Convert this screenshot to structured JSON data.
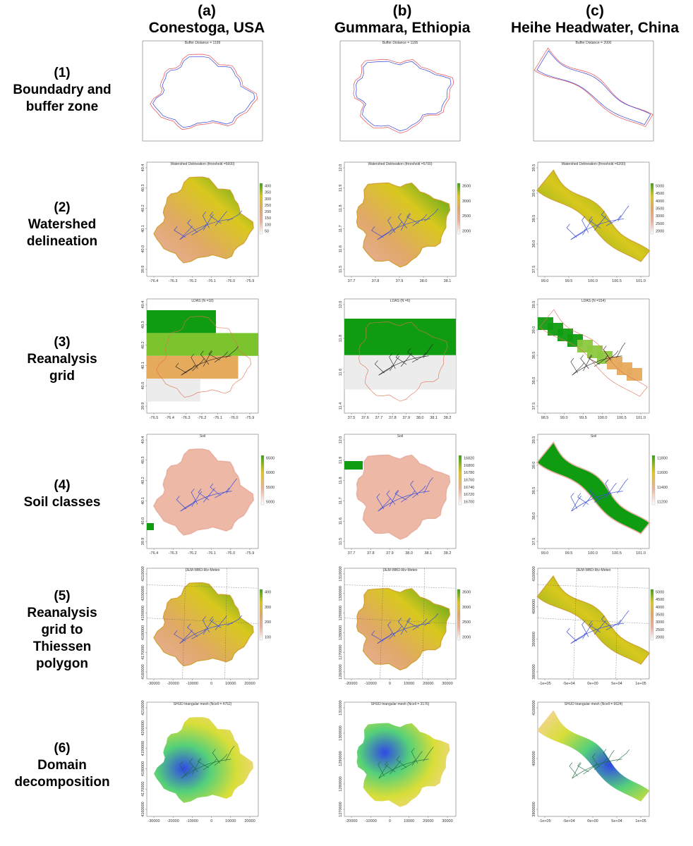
{
  "columns": [
    {
      "letter": "(a)",
      "name": "Conestoga, USA"
    },
    {
      "letter": "(b)",
      "name": "Gummara, Ethiopia"
    },
    {
      "letter": "(c)",
      "name": "Heihe Headwater, China"
    }
  ],
  "rows": [
    {
      "number": "(1)",
      "lines": [
        "Boundadry and",
        "buffer zone"
      ]
    },
    {
      "number": "(2)",
      "lines": [
        "Watershed",
        "delineation"
      ]
    },
    {
      "number": "(3)",
      "lines": [
        "Reanalysis",
        "grid"
      ]
    },
    {
      "number": "(4)",
      "lines": [
        "Soil classes"
      ]
    },
    {
      "number": "(5)",
      "lines": [
        "Reanalysis",
        "grid to",
        "Thiessen",
        "polygon"
      ]
    },
    {
      "number": "(6)",
      "lines": [
        "Domain",
        "decomposition"
      ]
    }
  ],
  "panel_titles": {
    "r1": [
      "Buffer Distance = 1199",
      "Buffer Distance = 1195",
      "Buffer Distance = 2000"
    ],
    "r2": [
      "Watershed Delineation (threshold =5600)",
      "Watershed Delineation (threshold =5700)",
      "Watershed Delineation (threshold =6200)"
    ],
    "r3": [
      "LDAS (N =18)",
      "LDAS (N =6)",
      "LDAS (N =154)"
    ],
    "r4": [
      "Soil",
      "Soil",
      "Soil"
    ],
    "r5": [
      "DEM-WBD-Riv-Meteo",
      "DEM-WBD-Riv-Meteo",
      "DEM-WBD-Riv-Meteo"
    ],
    "r6": [
      "SHUD triangular mesh (Ncell = 4752)",
      "SHUD triangular mesh (Ncell = 3176)",
      "SHUD triangular mesh (Ncell = 6624)"
    ]
  },
  "axes": {
    "a_lon": [
      "-76.4",
      "-76.3",
      "-76.2",
      "-76.1",
      "-76.0",
      "-75.9"
    ],
    "a_lon3": [
      "-76.5",
      "-76.4",
      "-76.3",
      "-76.2",
      "-76.1",
      "-76.0",
      "-75.9"
    ],
    "a_lat": [
      "40.4",
      "40.3",
      "40.2",
      "40.1",
      "40.0",
      "39.9"
    ],
    "a_x": [
      "-30000",
      "-20000",
      "-10000",
      "0",
      "10000",
      "20000"
    ],
    "a_y5": [
      "4210000",
      "4200000",
      "4190000",
      "4180000",
      "4170000",
      "4160000"
    ],
    "a_y6": [
      "4210000",
      "4200000",
      "4190000",
      "4180000",
      "4170000",
      "4160000"
    ],
    "b_lon": [
      "37.7",
      "37.8",
      "37.9",
      "38.0",
      "38.1"
    ],
    "b_lon3": [
      "37.5",
      "37.6",
      "37.7",
      "37.8",
      "37.9",
      "38.0",
      "38.1",
      "38.2"
    ],
    "b_lon4": [
      "37.7",
      "37.8",
      "37.9",
      "38.0",
      "38.1",
      "38.2"
    ],
    "b_lat": [
      "12.0",
      "11.9",
      "11.8",
      "11.7",
      "11.6",
      "11.5"
    ],
    "b_lat3": [
      "12.0",
      "11.8",
      "11.6",
      "11.4"
    ],
    "b_x": [
      "-20000",
      "-10000",
      "0",
      "10000",
      "20000",
      "30000"
    ],
    "b_y5": [
      "1310000",
      "1300000",
      "1290000",
      "1280000",
      "1270000",
      "1260000"
    ],
    "b_y6": [
      "1310000",
      "1300000",
      "1290000",
      "1280000",
      "1270000"
    ],
    "c_lon": [
      "99.0",
      "99.5",
      "100.0",
      "100.5",
      "101.0"
    ],
    "c_lon3": [
      "98.5",
      "99.0",
      "99.5",
      "100.0",
      "100.5",
      "101.0"
    ],
    "c_lat": [
      "39.5",
      "39.0",
      "38.5",
      "38.0",
      "37.5"
    ],
    "c_x": [
      "-1e+05",
      "-5e+04",
      "0e+00",
      "5e+04",
      "1e+05"
    ],
    "c_y5": [
      "4100000",
      "4000000",
      "3900000",
      "3800000"
    ],
    "c_y6": [
      "4100000",
      "4000000",
      "3900000"
    ]
  },
  "legends": {
    "a2": [
      "400",
      "350",
      "300",
      "250",
      "200",
      "150",
      "100",
      "50"
    ],
    "b2": [
      "3500",
      "3000",
      "2500",
      "2000"
    ],
    "c2": [
      "5000",
      "4500",
      "4000",
      "3500",
      "3000",
      "2500",
      "2000"
    ],
    "a4": [
      "6500",
      "6000",
      "5500",
      "5000"
    ],
    "b4": [
      "16820",
      "16800",
      "16780",
      "16760",
      "16740",
      "16720",
      "16700"
    ],
    "c4": [
      "11800",
      "11600",
      "11400",
      "11200"
    ],
    "a5": [
      "400",
      "300",
      "200",
      "100"
    ],
    "b5": [
      "3500",
      "3000",
      "2500",
      "2000"
    ],
    "c5": [
      "5000",
      "4500",
      "4000",
      "3500",
      "3000",
      "2500",
      "2000"
    ]
  },
  "colors": {
    "buffer": "#e8484f",
    "boundary": "#3344dd",
    "river": "#3b4fd8",
    "terrain_low": "#e9b1a0",
    "terrain_mid": "#e0a868",
    "terrain_high": "#d9c81e",
    "terrain_top": "#3c9f1c",
    "grid_green": "#109c10",
    "grid_orange": "#e6aa5c",
    "grid_gray": "#ececec",
    "mesh_blue": "#3049e6",
    "mesh_green": "#54d07a",
    "mesh_yellow": "#d8de38",
    "mesh_tan": "#f3d592"
  }
}
